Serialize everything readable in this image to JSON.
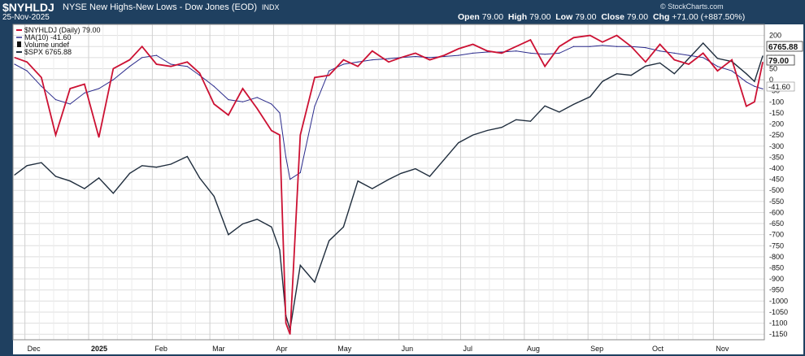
{
  "header": {
    "ticker": "$NYHLDJ",
    "title": "NYSE New Highs-New Lows - Dow Jones (EOD)",
    "exchange": "INDX",
    "date": "25-Nov-2025",
    "open_label": "Open",
    "open_value": "79.00",
    "high_label": "High",
    "high_value": "79.00",
    "low_label": "Low",
    "low_value": "79.00",
    "close_label": "Close",
    "close_value": "79.00",
    "chg_label": "Chg",
    "chg_value": "+71.00 (+887.50%)",
    "logo": "© StockCharts.com"
  },
  "legend": {
    "l1": "$NYHLDJ (Daily) 79.00",
    "l2": "MA(10) -41.60",
    "l3": "Volume undef",
    "l4": "$SPX 6765.88"
  },
  "badges": {
    "spx": "6765.88",
    "last": "79.00",
    "ma": "-41.60"
  },
  "colors": {
    "nyhl": "#cc1133",
    "ma": "#2b2b8c",
    "spx": "#1f2d3d",
    "frame": "#1f4060",
    "grid": "#d8d8d8"
  },
  "chart_data": {
    "type": "line",
    "title": "NYSE New Highs-New Lows - Dow Jones (EOD)",
    "ylim": [
      -1175,
      250
    ],
    "yticks": [
      200,
      150,
      100,
      50,
      0,
      -50,
      -100,
      -150,
      -200,
      -250,
      -300,
      -350,
      -400,
      -450,
      -500,
      -550,
      -600,
      -650,
      -700,
      -750,
      -800,
      -850,
      -900,
      -950,
      -1000,
      -1050,
      -1100,
      -1150
    ],
    "xlabels": [
      "Dec",
      "2025",
      "Feb",
      "Mar",
      "Apr",
      "May",
      "Jun",
      "Jul",
      "Aug",
      "Sep",
      "Oct",
      "Nov"
    ],
    "x": [
      "2024-11-26",
      "2024-12-02",
      "2024-12-09",
      "2024-12-16",
      "2024-12-23",
      "2024-12-30",
      "2025-01-06",
      "2025-01-13",
      "2025-01-21",
      "2025-01-27",
      "2025-02-03",
      "2025-02-10",
      "2025-02-18",
      "2025-02-24",
      "2025-03-03",
      "2025-03-10",
      "2025-03-17",
      "2025-03-24",
      "2025-03-31",
      "2025-04-04",
      "2025-04-07",
      "2025-04-09",
      "2025-04-14",
      "2025-04-21",
      "2025-04-28",
      "2025-05-05",
      "2025-05-12",
      "2025-05-19",
      "2025-05-27",
      "2025-06-02",
      "2025-06-09",
      "2025-06-16",
      "2025-06-23",
      "2025-06-30",
      "2025-07-07",
      "2025-07-14",
      "2025-07-21",
      "2025-07-28",
      "2025-08-04",
      "2025-08-11",
      "2025-08-18",
      "2025-08-25",
      "2025-09-02",
      "2025-09-08",
      "2025-09-15",
      "2025-09-22",
      "2025-09-29",
      "2025-10-06",
      "2025-10-13",
      "2025-10-20",
      "2025-10-27",
      "2025-11-03",
      "2025-11-10",
      "2025-11-17",
      "2025-11-21",
      "2025-11-25"
    ],
    "series": [
      {
        "name": "$NYHLDJ (Daily) 79.00",
        "values": [
          100,
          80,
          10,
          -250,
          -40,
          -20,
          -260,
          50,
          90,
          150,
          70,
          60,
          80,
          30,
          -110,
          -160,
          -40,
          -130,
          -230,
          -250,
          -1100,
          -1150,
          -250,
          10,
          20,
          90,
          60,
          130,
          80,
          100,
          120,
          90,
          110,
          140,
          160,
          130,
          120,
          150,
          180,
          60,
          150,
          190,
          200,
          170,
          200,
          150,
          80,
          160,
          90,
          70,
          120,
          40,
          90,
          -120,
          -100,
          79
        ]
      },
      {
        "name": "MA(10) -41.60",
        "values": [
          70,
          40,
          -30,
          -90,
          -110,
          -60,
          -40,
          0,
          60,
          100,
          110,
          70,
          60,
          20,
          -30,
          -90,
          -100,
          -80,
          -110,
          -150,
          -350,
          -450,
          -420,
          -120,
          40,
          70,
          80,
          90,
          95,
          100,
          105,
          100,
          105,
          110,
          120,
          125,
          125,
          130,
          120,
          115,
          120,
          150,
          150,
          155,
          150,
          150,
          145,
          130,
          120,
          110,
          100,
          60,
          40,
          -10,
          -30,
          -41.6
        ]
      },
      {
        "name": "$SPX 6765.88",
        "values": [
          5990,
          6050,
          6070,
          5980,
          5950,
          5900,
          5970,
          5870,
          6000,
          6050,
          6040,
          6060,
          6110,
          5970,
          5850,
          5600,
          5670,
          5700,
          5650,
          5500,
          5070,
          4980,
          5400,
          5290,
          5560,
          5650,
          5950,
          5900,
          5960,
          6000,
          6030,
          5980,
          6090,
          6200,
          6250,
          6280,
          6300,
          6350,
          6340,
          6440,
          6400,
          6450,
          6500,
          6600,
          6650,
          6640,
          6700,
          6720,
          6650,
          6750,
          6850,
          6750,
          6730,
          6650,
          6600,
          6765.88
        ]
      }
    ],
    "spx_scale_note": "right axis shows $NYHLDJ scale"
  }
}
